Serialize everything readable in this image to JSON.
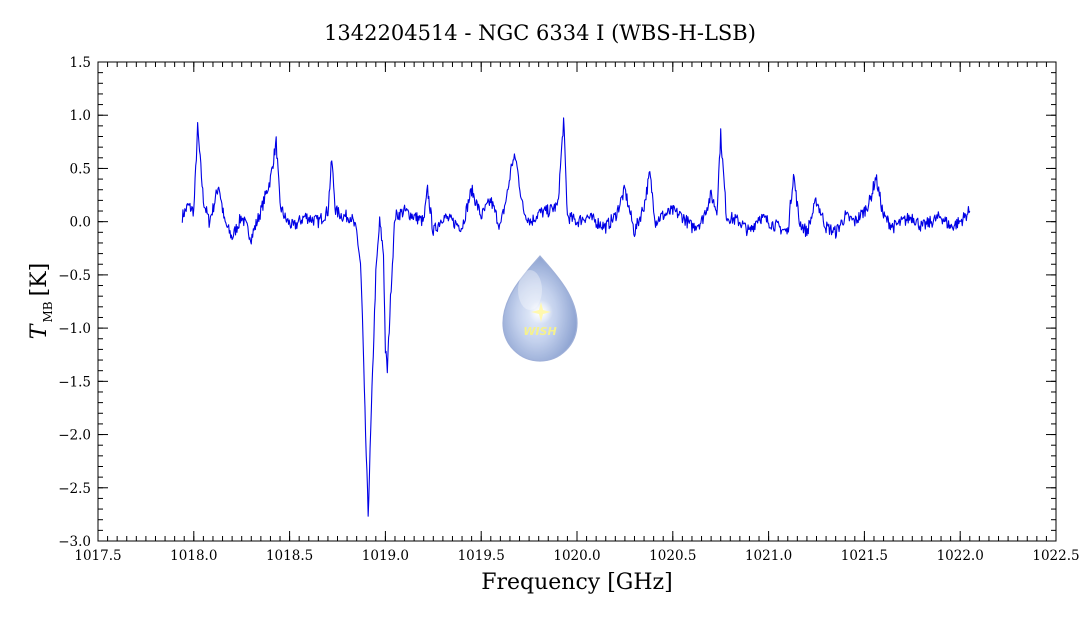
{
  "chart_data": {
    "type": "line",
    "title": "1342204514 - NGC 6334 I (WBS-H-LSB)",
    "xlabel": "Frequency [GHz]",
    "ylabel_symbol": "T",
    "ylabel_subscript": "MB",
    "ylabel_unit": "[K]",
    "xlim": [
      1017.5,
      1022.5
    ],
    "ylim": [
      -3.0,
      1.5
    ],
    "x_ticks": [
      "1017.5",
      "1018.0",
      "1018.5",
      "1019.0",
      "1019.5",
      "1020.0",
      "1020.5",
      "1021.0",
      "1021.5",
      "1022.0",
      "1022.5"
    ],
    "y_ticks": [
      "1.5",
      "1.0",
      "0.5",
      "0.0",
      "−0.5",
      "−1.0",
      "−1.5",
      "−2.0",
      "−2.5",
      "−3.0"
    ],
    "grid": false,
    "line_color": "#0000e6",
    "series": [
      {
        "x": [
          1017.94,
          1017.97,
          1018.0,
          1018.02,
          1018.05,
          1018.08,
          1018.1,
          1018.13,
          1018.16,
          1018.2,
          1018.25,
          1018.3,
          1018.35,
          1018.4,
          1018.43,
          1018.45,
          1018.48,
          1018.52,
          1018.58,
          1018.65,
          1018.7,
          1018.72,
          1018.74,
          1018.78,
          1018.82,
          1018.85,
          1018.87,
          1018.88,
          1018.89,
          1018.9,
          1018.91,
          1018.93,
          1018.95,
          1018.97,
          1018.99,
          1019.0,
          1019.01,
          1019.03,
          1019.05,
          1019.1,
          1019.15,
          1019.2,
          1019.22,
          1019.25,
          1019.3,
          1019.35,
          1019.4,
          1019.45,
          1019.5,
          1019.55,
          1019.6,
          1019.64,
          1019.66,
          1019.68,
          1019.72,
          1019.76,
          1019.8,
          1019.85,
          1019.9,
          1019.93,
          1019.95,
          1020.0,
          1020.05,
          1020.1,
          1020.15,
          1020.2,
          1020.25,
          1020.3,
          1020.35,
          1020.38,
          1020.41,
          1020.44,
          1020.5,
          1020.55,
          1020.6,
          1020.65,
          1020.7,
          1020.73,
          1020.75,
          1020.78,
          1020.85,
          1020.9,
          1020.95,
          1021.0,
          1021.05,
          1021.1,
          1021.13,
          1021.16,
          1021.2,
          1021.25,
          1021.3,
          1021.35,
          1021.4,
          1021.45,
          1021.5,
          1021.53,
          1021.56,
          1021.6,
          1021.65,
          1021.7,
          1021.75,
          1021.8,
          1021.85,
          1021.9,
          1021.95,
          1022.0,
          1022.05
        ],
        "y": [
          0.05,
          0.15,
          0.1,
          0.88,
          0.2,
          0.0,
          0.12,
          0.35,
          0.0,
          -0.15,
          0.05,
          -0.15,
          0.1,
          0.4,
          0.75,
          0.15,
          0.02,
          -0.05,
          0.05,
          0.0,
          0.1,
          0.58,
          0.1,
          0.05,
          0.05,
          -0.1,
          -0.4,
          -0.9,
          -1.6,
          -2.2,
          -2.75,
          -1.6,
          -0.5,
          0.0,
          -0.3,
          -1.2,
          -1.4,
          -0.6,
          0.05,
          0.1,
          0.05,
          0.0,
          0.3,
          -0.1,
          0.05,
          0.0,
          -0.05,
          0.3,
          0.05,
          0.2,
          -0.05,
          0.3,
          0.55,
          0.6,
          0.1,
          0.0,
          0.08,
          0.1,
          0.15,
          0.95,
          0.05,
          0.0,
          0.05,
          0.0,
          -0.05,
          0.05,
          0.3,
          -0.1,
          0.15,
          0.45,
          0.0,
          0.05,
          0.1,
          0.05,
          -0.05,
          0.0,
          0.25,
          0.1,
          0.82,
          0.05,
          0.0,
          -0.1,
          0.05,
          0.0,
          -0.05,
          -0.1,
          0.45,
          0.0,
          -0.1,
          0.2,
          -0.05,
          -0.1,
          0.05,
          0.0,
          0.1,
          0.2,
          0.42,
          0.05,
          -0.05,
          0.0,
          0.05,
          -0.05,
          0.0,
          0.05,
          -0.05,
          0.0,
          0.1
        ]
      }
    ],
    "watermark": "WISH"
  }
}
